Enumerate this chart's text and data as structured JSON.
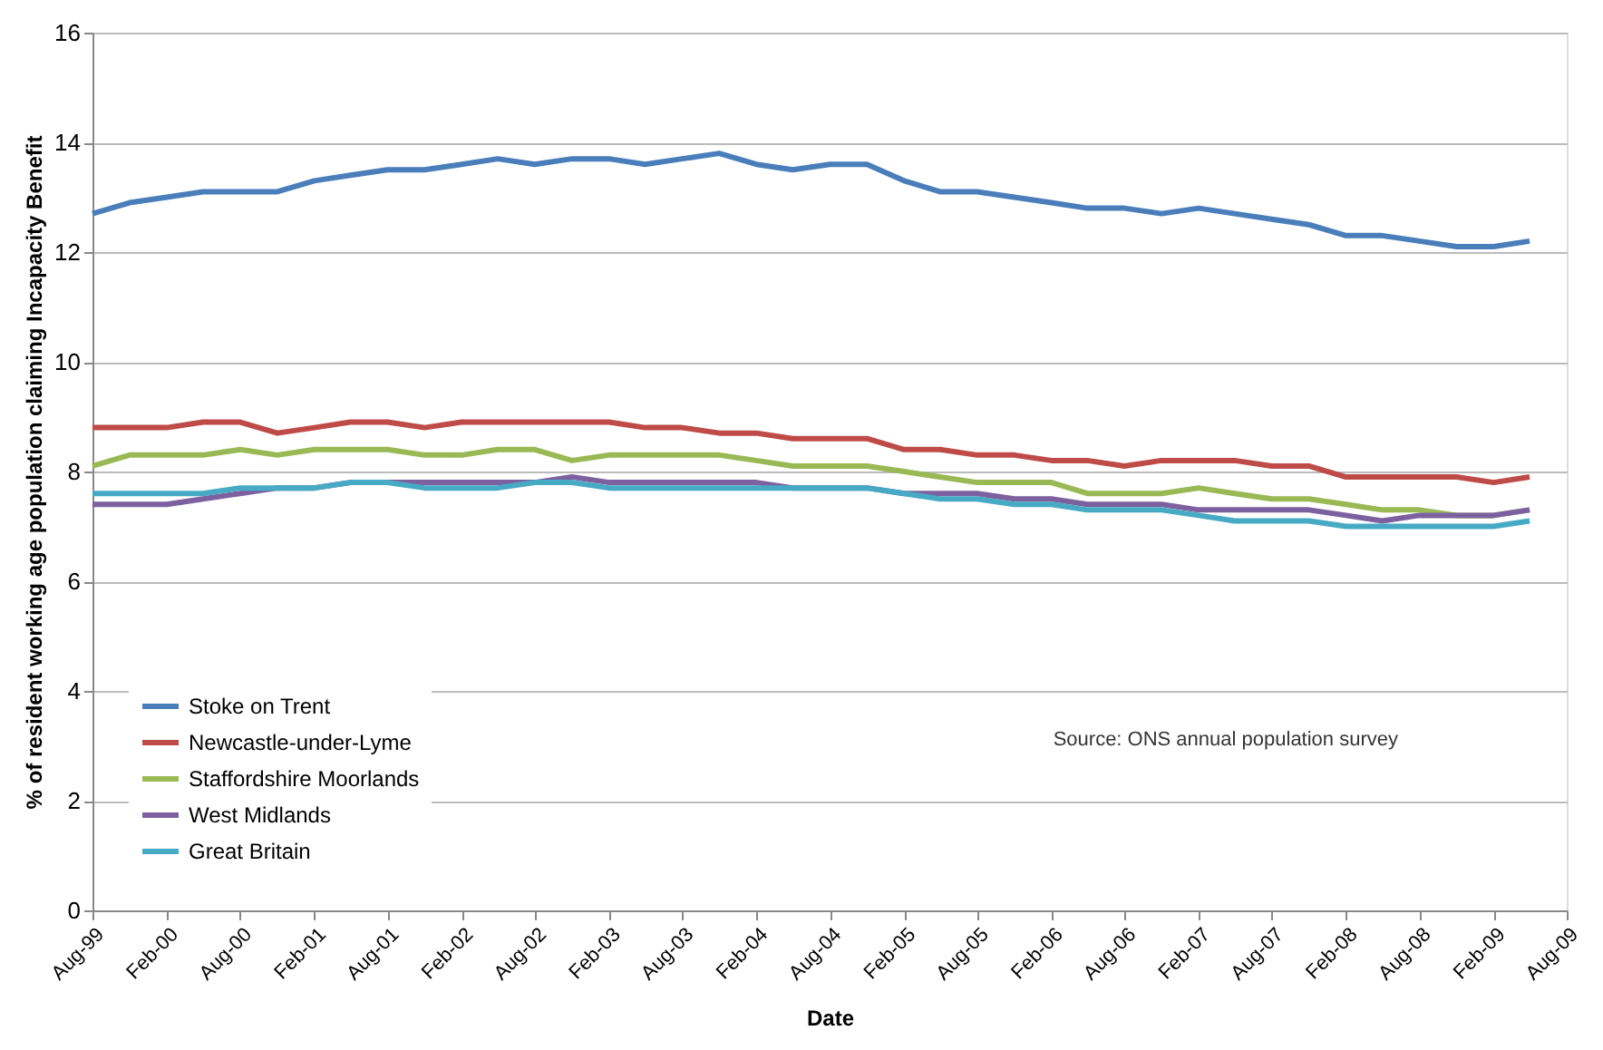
{
  "chart_data": {
    "type": "line",
    "xlabel": "Date",
    "ylabel": "% of resident working age population claiming Incapacity Benefit",
    "x": [
      "1999-08",
      "1999-11",
      "2000-02",
      "2000-05",
      "2000-08",
      "2000-11",
      "2001-02",
      "2001-05",
      "2001-08",
      "2001-11",
      "2002-02",
      "2002-05",
      "2002-08",
      "2002-11",
      "2003-02",
      "2003-05",
      "2003-08",
      "2003-11",
      "2004-02",
      "2004-05",
      "2004-08",
      "2004-11",
      "2005-02",
      "2005-05",
      "2005-08",
      "2005-11",
      "2006-02",
      "2006-05",
      "2006-08",
      "2006-11",
      "2007-02",
      "2007-05",
      "2007-08",
      "2007-11",
      "2008-02",
      "2008-05",
      "2008-08",
      "2008-11",
      "2009-02",
      "2009-05"
    ],
    "series": [
      {
        "name": "Stoke on Trent",
        "color": "#4a7ebb",
        "values": [
          12.7,
          12.9,
          13.0,
          13.1,
          13.1,
          13.1,
          13.3,
          13.4,
          13.5,
          13.5,
          13.6,
          13.7,
          13.6,
          13.7,
          13.7,
          13.6,
          13.7,
          13.8,
          13.6,
          13.5,
          13.6,
          13.6,
          13.3,
          13.1,
          13.1,
          13.0,
          12.9,
          12.8,
          12.8,
          12.7,
          12.8,
          12.7,
          12.6,
          12.5,
          12.3,
          12.3,
          12.2,
          12.1,
          12.1,
          12.2
        ]
      },
      {
        "name": "Newcastle-under-Lyme",
        "color": "#be4b48",
        "values": [
          8.8,
          8.8,
          8.8,
          8.9,
          8.9,
          8.7,
          8.8,
          8.9,
          8.9,
          8.8,
          8.9,
          8.9,
          8.9,
          8.9,
          8.9,
          8.8,
          8.8,
          8.7,
          8.7,
          8.6,
          8.6,
          8.6,
          8.4,
          8.4,
          8.3,
          8.3,
          8.2,
          8.2,
          8.1,
          8.2,
          8.2,
          8.2,
          8.1,
          8.1,
          7.9,
          7.9,
          7.9,
          7.9,
          7.8,
          7.9
        ]
      },
      {
        "name": "Staffordshire Moorlands",
        "color": "#98b954",
        "values": [
          8.1,
          8.3,
          8.3,
          8.3,
          8.4,
          8.3,
          8.4,
          8.4,
          8.4,
          8.3,
          8.3,
          8.4,
          8.4,
          8.2,
          8.3,
          8.3,
          8.3,
          8.3,
          8.2,
          8.1,
          8.1,
          8.1,
          8.0,
          7.9,
          7.8,
          7.8,
          7.8,
          7.6,
          7.6,
          7.6,
          7.7,
          7.6,
          7.5,
          7.5,
          7.4,
          7.3,
          7.3,
          7.2,
          7.2,
          7.3
        ]
      },
      {
        "name": "West Midlands",
        "color": "#7d60a0",
        "values": [
          7.4,
          7.4,
          7.4,
          7.5,
          7.6,
          7.7,
          7.7,
          7.8,
          7.8,
          7.8,
          7.8,
          7.8,
          7.8,
          7.9,
          7.8,
          7.8,
          7.8,
          7.8,
          7.8,
          7.7,
          7.7,
          7.7,
          7.6,
          7.6,
          7.6,
          7.5,
          7.5,
          7.4,
          7.4,
          7.4,
          7.3,
          7.3,
          7.3,
          7.3,
          7.2,
          7.1,
          7.2,
          7.2,
          7.2,
          7.3
        ]
      },
      {
        "name": "Great Britain",
        "color": "#46aac5",
        "values": [
          7.6,
          7.6,
          7.6,
          7.6,
          7.7,
          7.7,
          7.7,
          7.8,
          7.8,
          7.7,
          7.7,
          7.7,
          7.8,
          7.8,
          7.7,
          7.7,
          7.7,
          7.7,
          7.7,
          7.7,
          7.7,
          7.7,
          7.6,
          7.5,
          7.5,
          7.4,
          7.4,
          7.3,
          7.3,
          7.3,
          7.2,
          7.1,
          7.1,
          7.1,
          7.0,
          7.0,
          7.0,
          7.0,
          7.0,
          7.1
        ]
      }
    ],
    "xlim": [
      "1999-08",
      "2009-08"
    ],
    "xticks": [
      {
        "value": "1999-08",
        "label": "Aug-99"
      },
      {
        "value": "2000-02",
        "label": "Feb-00"
      },
      {
        "value": "2000-08",
        "label": "Aug-00"
      },
      {
        "value": "2001-02",
        "label": "Feb-01"
      },
      {
        "value": "2001-08",
        "label": "Aug-01"
      },
      {
        "value": "2002-02",
        "label": "Feb-02"
      },
      {
        "value": "2002-08",
        "label": "Aug-02"
      },
      {
        "value": "2003-02",
        "label": "Feb-03"
      },
      {
        "value": "2003-08",
        "label": "Aug-03"
      },
      {
        "value": "2004-02",
        "label": "Feb-04"
      },
      {
        "value": "2004-08",
        "label": "Aug-04"
      },
      {
        "value": "2005-02",
        "label": "Feb-05"
      },
      {
        "value": "2005-08",
        "label": "Aug-05"
      },
      {
        "value": "2006-02",
        "label": "Feb-06"
      },
      {
        "value": "2006-08",
        "label": "Aug-06"
      },
      {
        "value": "2007-02",
        "label": "Feb-07"
      },
      {
        "value": "2007-08",
        "label": "Aug-07"
      },
      {
        "value": "2008-02",
        "label": "Feb-08"
      },
      {
        "value": "2008-08",
        "label": "Aug-08"
      },
      {
        "value": "2009-02",
        "label": "Feb-09"
      },
      {
        "value": "2009-08",
        "label": "Aug-09"
      }
    ],
    "ylim": [
      0,
      16
    ],
    "yticks": [
      0,
      2,
      4,
      6,
      8,
      10,
      12,
      14,
      16
    ],
    "grid": "y",
    "legend": "bottom left",
    "marker": "none",
    "line_style": "solid",
    "annotations": [
      "Source: ONS annual population survey"
    ]
  }
}
